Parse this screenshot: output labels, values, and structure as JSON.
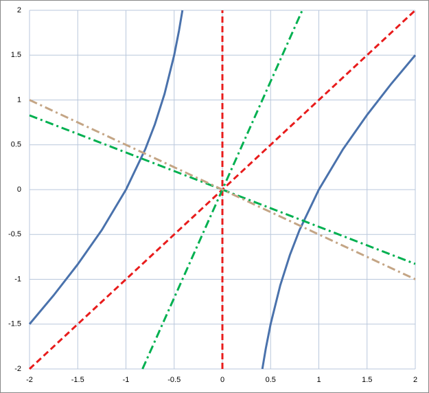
{
  "chart_data": {
    "type": "line",
    "xlim": [
      -2,
      2
    ],
    "ylim": [
      -2,
      2
    ],
    "xticks": [
      -2,
      -1.5,
      -1,
      -0.5,
      0,
      0.5,
      1,
      1.5,
      2
    ],
    "yticks": [
      -2,
      -1.5,
      -1,
      -0.5,
      0,
      0.5,
      1,
      1.5,
      2
    ],
    "grid": true,
    "series": [
      {
        "color": "#4a72ac",
        "dash": "solid",
        "x": [
          -2,
          -1.75,
          -1.5,
          -1.25,
          -1,
          -0.8,
          -0.7,
          -0.6,
          -0.5,
          -0.45,
          -0.4142,
          null,
          0.4142,
          0.45,
          0.5,
          0.6,
          0.7,
          0.8,
          1,
          1.25,
          1.5,
          1.75,
          2
        ],
        "values": [
          -1.5,
          -1.179,
          -0.833,
          -0.45,
          0,
          0.45,
          0.729,
          1.067,
          1.5,
          1.772,
          2,
          null,
          -2,
          -1.772,
          -1.5,
          -1.067,
          -0.729,
          -0.45,
          0,
          0.45,
          0.833,
          1.179,
          1.5
        ]
      },
      {
        "color": "#e81c1c",
        "dash": "dash",
        "x": [
          -2,
          2
        ],
        "values": [
          -2,
          2
        ]
      },
      {
        "color": "#e81c1c",
        "dash": "dash",
        "x": [
          0,
          0
        ],
        "values": [
          -2,
          2
        ]
      },
      {
        "color": "#00b050",
        "dash": "dashdot",
        "x": [
          -0.8284,
          0.8284
        ],
        "values": [
          -2,
          2
        ]
      },
      {
        "color": "#00b050",
        "dash": "dashdot",
        "x": [
          -2,
          2
        ],
        "values": [
          0.8284,
          -0.8284
        ]
      },
      {
        "color": "#c4a585",
        "dash": "dashdot",
        "x": [
          -2,
          2
        ],
        "values": [
          1,
          -1
        ]
      }
    ]
  }
}
